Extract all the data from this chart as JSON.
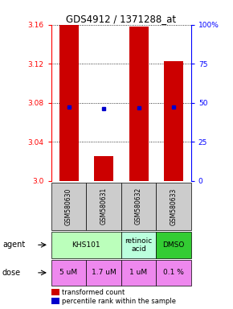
{
  "title": "GDS4912 / 1371288_at",
  "samples": [
    "GSM580630",
    "GSM580631",
    "GSM580632",
    "GSM580633"
  ],
  "bar_values": [
    3.16,
    3.025,
    3.158,
    3.123
  ],
  "bar_bottom": 3.0,
  "percentile_values": [
    3.076,
    3.074,
    3.075,
    3.076
  ],
  "ylim": [
    3.0,
    3.16
  ],
  "yticks_left": [
    3.0,
    3.04,
    3.08,
    3.12,
    3.16
  ],
  "yticks_right": [
    0,
    25,
    50,
    75,
    100
  ],
  "ytick_labels_right": [
    "0",
    "25",
    "50",
    "75",
    "100%"
  ],
  "bar_color": "#cc0000",
  "percentile_color": "#0000cc",
  "agent_groups": [
    {
      "start": 0,
      "end": 2,
      "label": "KHS101",
      "color": "#bbffbb"
    },
    {
      "start": 2,
      "end": 3,
      "label": "retinoic\nacid",
      "color": "#bbffdd"
    },
    {
      "start": 3,
      "end": 4,
      "label": "DMSO",
      "color": "#33cc33"
    }
  ],
  "dose_row": [
    "5 uM",
    "1.7 uM",
    "1 uM",
    "0.1 %"
  ],
  "dose_color": "#ee88ee",
  "sample_bg": "#cccccc",
  "legend_bar_label": "transformed count",
  "legend_pct_label": "percentile rank within the sample",
  "figsize": [
    2.9,
    3.84
  ],
  "dpi": 100
}
